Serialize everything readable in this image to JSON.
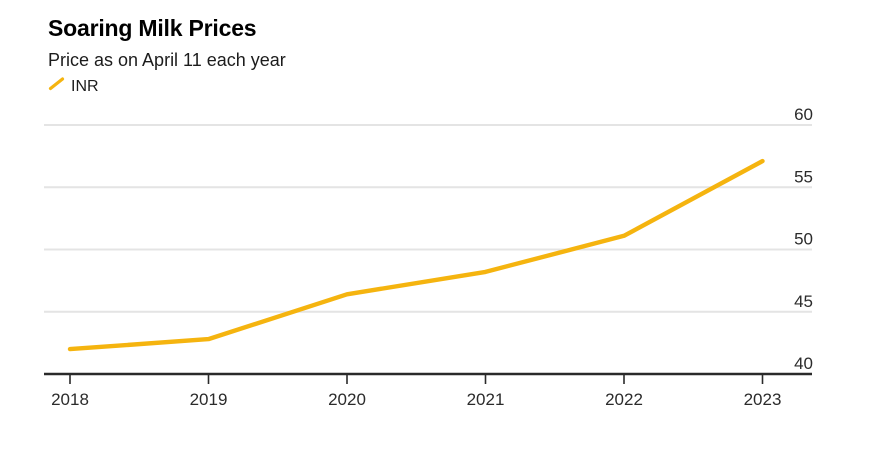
{
  "header": {
    "title": "Soaring Milk Prices",
    "subtitle": "Price as on April 11 each year",
    "legend": [
      {
        "label": "INR",
        "marker": "diagonal-line",
        "color": "#F5B40F"
      }
    ]
  },
  "colors": {
    "series_yellow": "#F5B40F",
    "gridline": "#E4E4E4",
    "axis": "#2A2A2A",
    "tick_label": "#2B2B2B",
    "background": "#FFFFFF"
  },
  "chart_data": {
    "type": "line",
    "title": "Soaring Milk Prices",
    "subtitle": "Price as on April 11 each year",
    "xlabel": "",
    "ylabel": "",
    "x": [
      "2018",
      "2019",
      "2020",
      "2021",
      "2022",
      "2023"
    ],
    "series": [
      {
        "name": "INR",
        "color": "#F5B40F",
        "values": [
          42.0,
          42.8,
          46.4,
          48.2,
          51.1,
          57.1
        ]
      }
    ],
    "ylim": [
      40,
      60
    ],
    "yticks": [
      "40",
      "45",
      "50",
      "55",
      "60"
    ],
    "ytick_values": [
      40,
      45,
      50,
      55,
      60
    ],
    "grid": "horizontal",
    "y_labels_side": "right",
    "legend_position": "top-left-under-subtitle"
  }
}
